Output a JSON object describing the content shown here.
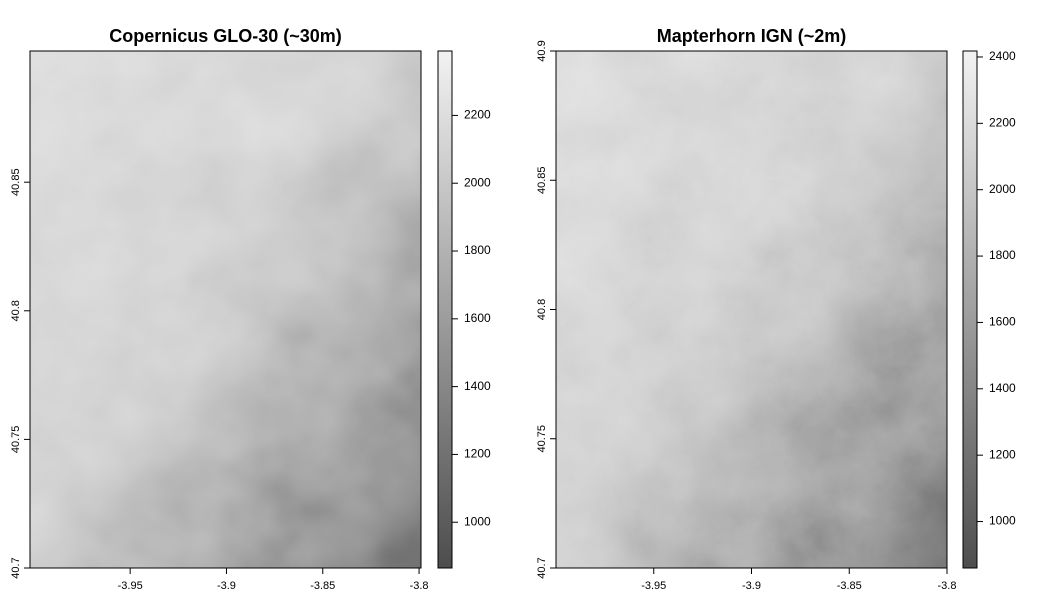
{
  "chart_data": [
    {
      "type": "raster",
      "title": "Copernicus GLO-30 (~30m)",
      "xlim": [
        -4.002,
        -3.799
      ],
      "ylim": [
        40.7,
        40.901
      ],
      "xticks": [
        -3.95,
        -3.9,
        -3.85,
        -3.8
      ],
      "yticks": [
        40.7,
        40.75,
        40.8,
        40.85
      ],
      "colorbar": {
        "lim": [
          865,
          2390
        ],
        "ticks": [
          1000,
          1200,
          1400,
          1600,
          1800,
          2000,
          2200
        ]
      }
    },
    {
      "type": "raster",
      "title": "Mapterhorn IGN (~2m)",
      "xlim": [
        -4.0,
        -3.8
      ],
      "ylim": [
        40.7,
        40.9
      ],
      "xticks": [
        -3.95,
        -3.9,
        -3.85,
        -3.8
      ],
      "yticks": [
        40.7,
        40.75,
        40.8,
        40.85,
        40.9
      ],
      "colorbar": {
        "lim": [
          860,
          2418
        ],
        "ticks": [
          1000,
          1200,
          1400,
          1600,
          1800,
          2000,
          2200,
          2400
        ]
      }
    }
  ]
}
